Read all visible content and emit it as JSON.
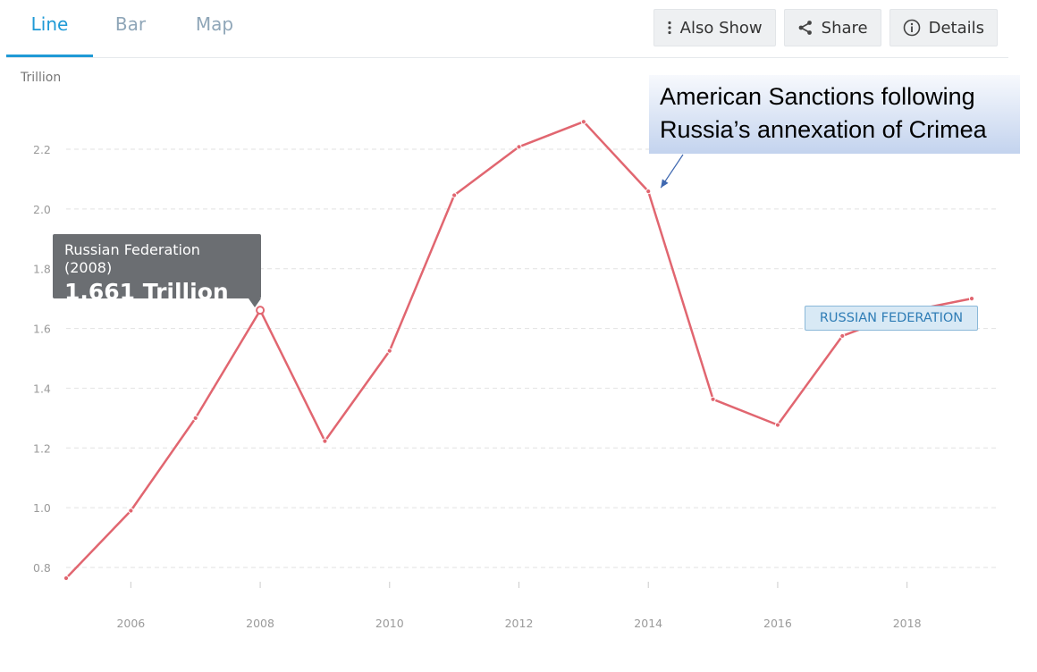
{
  "tabs": [
    {
      "label": "Line",
      "active": true
    },
    {
      "label": "Bar",
      "active": false
    },
    {
      "label": "Map",
      "active": false
    }
  ],
  "actions": {
    "also_show": "Also Show",
    "share": "Share",
    "details": "Details"
  },
  "colors": {
    "line": "#e16670",
    "accent": "#1f9ad6",
    "grid": "#e2e2e2",
    "tick": "#9a9a9a"
  },
  "tooltip": {
    "title": "Russian Federation (2008)",
    "value": "1.661 Trillion"
  },
  "series_label": "RUSSIAN FEDERATION",
  "annotation": {
    "line1": "American Sanctions following",
    "line2": "Russia’s annexation of Crimea"
  },
  "chart_data": {
    "type": "line",
    "unit_label": "Trillion",
    "x": [
      2005,
      2006,
      2007,
      2008,
      2009,
      2010,
      2011,
      2012,
      2013,
      2014,
      2015,
      2016,
      2017,
      2018,
      2019
    ],
    "series": [
      {
        "name": "RUSSIAN FEDERATION",
        "values": [
          0.764,
          0.99,
          1.3,
          1.661,
          1.223,
          1.525,
          2.046,
          2.208,
          2.292,
          2.059,
          1.363,
          1.277,
          1.575,
          1.657,
          1.7
        ]
      }
    ],
    "xticks": [
      2006,
      2008,
      2010,
      2012,
      2014,
      2016,
      2018
    ],
    "yticks": [
      "0.8",
      "1.0",
      "1.2",
      "1.4",
      "1.6",
      "1.8",
      "2.0",
      "2.2"
    ],
    "ylim": [
      0.7,
      2.4
    ],
    "highlight_year": 2008,
    "annotation_year": 2014,
    "grid": true
  }
}
